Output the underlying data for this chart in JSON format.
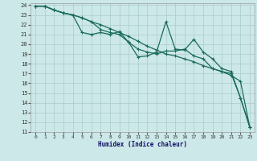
{
  "xlabel": "Humidex (Indice chaleur)",
  "bg_color": "#cce8e8",
  "grid_color": "#aacccc",
  "line_color": "#1a6b5a",
  "xlim": [
    -0.5,
    23.5
  ],
  "ylim": [
    11,
    24.2
  ],
  "xticks": [
    0,
    1,
    2,
    3,
    4,
    5,
    6,
    7,
    8,
    9,
    10,
    11,
    12,
    13,
    14,
    15,
    16,
    17,
    18,
    19,
    20,
    21,
    22,
    23
  ],
  "yticks": [
    11,
    12,
    13,
    14,
    15,
    16,
    17,
    18,
    19,
    20,
    21,
    22,
    23,
    24
  ],
  "series1": {
    "x": [
      0,
      1,
      2,
      3,
      4,
      5,
      6,
      7,
      8,
      9,
      10,
      11,
      12,
      13,
      14,
      15,
      16,
      17,
      18,
      19,
      20,
      21,
      22,
      23
    ],
    "y": [
      23.9,
      23.9,
      23.5,
      23.2,
      23.0,
      22.7,
      22.3,
      22.0,
      21.6,
      21.2,
      20.8,
      20.3,
      19.8,
      19.4,
      19.0,
      18.8,
      18.5,
      18.2,
      17.8,
      17.5,
      17.2,
      16.8,
      16.2,
      11.5
    ]
  },
  "series2": {
    "x": [
      0,
      1,
      2,
      3,
      4,
      5,
      6,
      7,
      8,
      9,
      10,
      11,
      12,
      13,
      14,
      15,
      16,
      17,
      18,
      19,
      20,
      21,
      22,
      23
    ],
    "y": [
      23.9,
      23.9,
      23.5,
      23.2,
      23.0,
      21.2,
      21.0,
      21.2,
      21.0,
      21.3,
      20.2,
      18.7,
      18.8,
      19.2,
      22.3,
      19.5,
      19.4,
      20.5,
      19.2,
      18.5,
      17.5,
      17.2,
      14.5,
      11.5
    ]
  },
  "series3": {
    "x": [
      0,
      1,
      2,
      3,
      4,
      5,
      6,
      7,
      8,
      9,
      10,
      11,
      12,
      13,
      14,
      15,
      16,
      17,
      18,
      19,
      20,
      21,
      22,
      23
    ],
    "y": [
      23.9,
      23.9,
      23.5,
      23.2,
      23.0,
      22.7,
      22.3,
      21.5,
      21.2,
      21.0,
      20.2,
      19.5,
      19.2,
      19.0,
      19.3,
      19.3,
      19.5,
      18.8,
      18.5,
      17.5,
      17.2,
      17.0,
      14.5,
      11.5
    ]
  }
}
